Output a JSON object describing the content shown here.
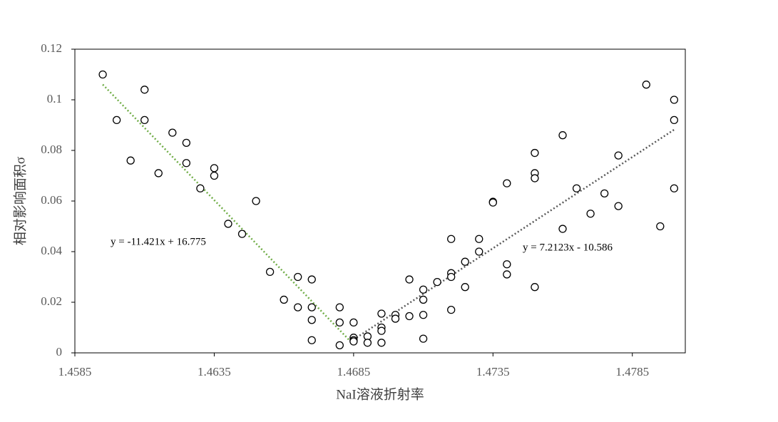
{
  "chart_data": {
    "type": "scatter",
    "x_label": "NaI溶液折射率",
    "y_label": "相对影响面积σ",
    "xlim": [
      1.4585,
      1.4804
    ],
    "ylim": [
      0,
      0.12
    ],
    "xticks": [
      1.4585,
      1.4635,
      1.4685,
      1.4735,
      1.4785
    ],
    "yticks": [
      0,
      0.02,
      0.04,
      0.06,
      0.08,
      0.1,
      0.12
    ],
    "marker_color": "#000000",
    "x": [
      1.4595,
      1.46,
      1.4605,
      1.461,
      1.461,
      1.4615,
      1.462,
      1.4625,
      1.4625,
      1.463,
      1.4635,
      1.4635,
      1.464,
      1.4645,
      1.465,
      1.4655,
      1.466,
      1.4665,
      1.4665,
      1.467,
      1.467,
      1.467,
      1.467,
      1.468,
      1.468,
      1.468,
      1.4685,
      1.4685,
      1.4685,
      1.4685,
      1.469,
      1.469,
      1.4695,
      1.4695,
      1.4695,
      1.4695,
      1.47,
      1.47,
      1.4705,
      1.4705,
      1.471,
      1.471,
      1.471,
      1.471,
      1.4715,
      1.472,
      1.472,
      1.472,
      1.472,
      1.4725,
      1.4725,
      1.473,
      1.473,
      1.4735,
      1.4735,
      1.474,
      1.474,
      1.474,
      1.475,
      1.475,
      1.475,
      1.475,
      1.476,
      1.476,
      1.4765,
      1.477,
      1.4775,
      1.478,
      1.478,
      1.479,
      1.4795,
      1.48,
      1.48,
      1.48
    ],
    "y": [
      0.11,
      0.092,
      0.076,
      0.104,
      0.092,
      0.071,
      0.087,
      0.083,
      0.075,
      0.065,
      0.073,
      0.07,
      0.051,
      0.047,
      0.06,
      0.032,
      0.021,
      0.03,
      0.018,
      0.029,
      0.018,
      0.013,
      0.005,
      0.018,
      0.012,
      0.003,
      0.012,
      0.006,
      0.005,
      0.0045,
      0.0065,
      0.004,
      0.0155,
      0.01,
      0.0087,
      0.004,
      0.015,
      0.0135,
      0.029,
      0.0145,
      0.025,
      0.021,
      0.015,
      0.0056,
      0.028,
      0.045,
      0.0315,
      0.03,
      0.017,
      0.036,
      0.026,
      0.045,
      0.04,
      0.0597,
      0.0594,
      0.067,
      0.035,
      0.031,
      0.079,
      0.071,
      0.069,
      0.026,
      0.086,
      0.049,
      0.065,
      0.055,
      0.063,
      0.078,
      0.058,
      0.106,
      0.05,
      0.1,
      0.092,
      0.065
    ],
    "trendlines": [
      {
        "label": "y = -11.421x + 16.775",
        "slope": -11.421,
        "intercept": 16.775,
        "x_range": [
          1.4595,
          1.4685
        ],
        "color": "#70ad47"
      },
      {
        "label": "y = 7.2123x - 10.586",
        "slope": 7.2123,
        "intercept": -10.586,
        "x_range": [
          1.4685,
          1.48
        ],
        "color": "#595959"
      }
    ]
  }
}
